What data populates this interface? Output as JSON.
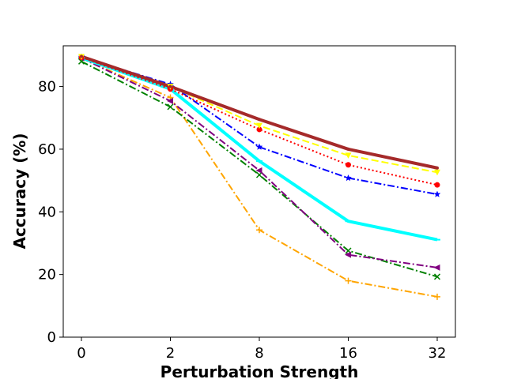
{
  "chart_data": {
    "type": "line",
    "title": "",
    "xlabel": "Perturbation Strength",
    "ylabel": "Accuracy (%)",
    "categories": [
      "0",
      "2",
      "8",
      "16",
      "32"
    ],
    "ylim": [
      0,
      93
    ],
    "yticks": [
      0,
      20,
      40,
      60,
      80
    ],
    "grid": false,
    "legend": "none",
    "series": [
      {
        "name": "orange",
        "color": "#ffa500",
        "dash": "dashdot",
        "marker": "plus",
        "width": "thin",
        "values": [
          89.0,
          76.5,
          34.2,
          18.0,
          12.9
        ]
      },
      {
        "name": "green",
        "color": "#008000",
        "dash": "dashdot",
        "marker": "x",
        "width": "thin",
        "values": [
          88.0,
          73.5,
          51.8,
          27.6,
          19.3
        ]
      },
      {
        "name": "purple",
        "color": "#800080",
        "dash": "dashdot",
        "marker": "triangle-left",
        "width": "thin",
        "values": [
          89.1,
          75.4,
          53.2,
          26.3,
          22.2
        ]
      },
      {
        "name": "cyan",
        "color": "#00ffff",
        "dash": "solid",
        "marker": "line",
        "width": "thick",
        "values": [
          89.2,
          79.2,
          56.2,
          37.0,
          31.1
        ]
      },
      {
        "name": "blue",
        "color": "#0000ff",
        "dash": "dashdot",
        "marker": "star",
        "width": "thin",
        "values": [
          89.4,
          80.7,
          60.7,
          50.8,
          45.6
        ]
      },
      {
        "name": "red",
        "color": "#ff0000",
        "dash": "dotted",
        "marker": "circle",
        "width": "thin",
        "values": [
          89.3,
          79.2,
          66.3,
          55.0,
          48.6
        ]
      },
      {
        "name": "yellow",
        "color": "#ffff00",
        "dash": "dashed",
        "marker": "triangle-down",
        "width": "thin",
        "values": [
          89.5,
          80.0,
          67.5,
          58.0,
          52.6
        ]
      },
      {
        "name": "brown",
        "color": "#a52a2a",
        "dash": "solid",
        "marker": "point",
        "width": "thick",
        "values": [
          89.6,
          80.0,
          69.5,
          60.0,
          54.0
        ]
      }
    ]
  }
}
